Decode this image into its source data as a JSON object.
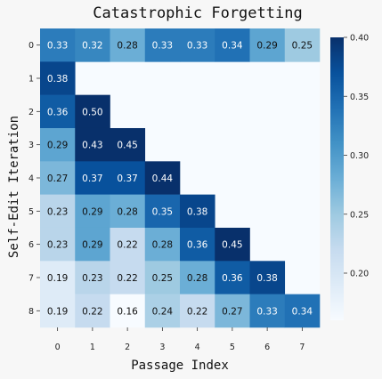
{
  "chart_data": {
    "type": "heatmap",
    "title": "Catastrophic Forgetting",
    "xlabel": "Passage Index",
    "ylabel": "Self-Edit Iteration",
    "x_categories": [
      "0",
      "1",
      "2",
      "3",
      "4",
      "5",
      "6",
      "7"
    ],
    "y_categories": [
      "0",
      "1",
      "2",
      "3",
      "4",
      "5",
      "6",
      "7",
      "8"
    ],
    "values": [
      [
        0.33,
        0.32,
        0.28,
        0.33,
        0.33,
        0.34,
        0.29,
        0.25
      ],
      [
        0.38,
        null,
        null,
        null,
        null,
        null,
        null,
        null
      ],
      [
        0.36,
        0.5,
        null,
        null,
        null,
        null,
        null,
        null
      ],
      [
        0.29,
        0.43,
        0.45,
        null,
        null,
        null,
        null,
        null
      ],
      [
        0.27,
        0.37,
        0.37,
        0.44,
        null,
        null,
        null,
        null
      ],
      [
        0.23,
        0.29,
        0.28,
        0.35,
        0.38,
        null,
        null,
        null
      ],
      [
        0.23,
        0.29,
        0.22,
        0.28,
        0.36,
        0.45,
        null,
        null
      ],
      [
        0.19,
        0.23,
        0.22,
        0.25,
        0.28,
        0.36,
        0.38,
        null
      ],
      [
        0.19,
        0.22,
        0.16,
        0.24,
        0.22,
        0.27,
        0.33,
        0.34
      ]
    ],
    "colorscale": "Blues",
    "vmin": 0.16,
    "vmax": 0.4,
    "colorbar_ticks": [
      "0.20",
      "0.25",
      "0.30",
      "0.35",
      "0.40"
    ],
    "colorbar_tick_values": [
      0.2,
      0.25,
      0.3,
      0.35,
      0.4
    ]
  }
}
